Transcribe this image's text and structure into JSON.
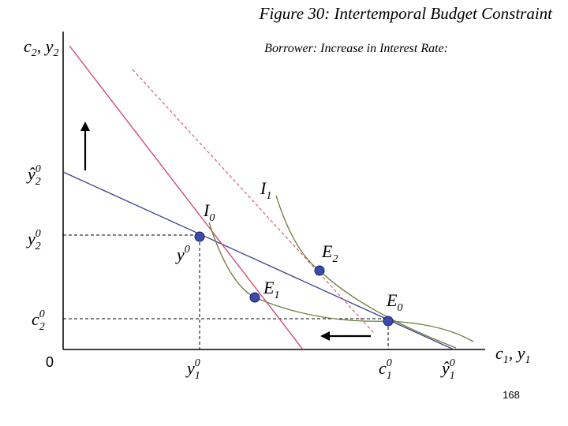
{
  "header": {
    "title": "Figure 30: Intertemporal Budget Constraint",
    "subtitle": "Borrower: Increase in Interest Rate:"
  },
  "axes": {
    "y_label": [
      {
        "base": "c",
        "sub": "2"
      },
      {
        "base": ", y",
        "sub": "2"
      }
    ],
    "x_label": [
      {
        "base": "c",
        "sub": "1"
      },
      {
        "base": ", y",
        "sub": "1"
      }
    ],
    "origin": "0"
  },
  "labels": {
    "y2_hat": {
      "base": "ŷ",
      "sub": "2",
      "sup": "0"
    },
    "y2": {
      "base": "y",
      "sub": "2",
      "sup": "0"
    },
    "c2": {
      "base": "c",
      "sub": "2",
      "sup": "0"
    },
    "y1": {
      "base": "y",
      "sub": "1",
      "sup": "0"
    },
    "c1": {
      "base": "c",
      "sub": "1",
      "sup": "0"
    },
    "y1_hat": {
      "base": "ŷ",
      "sub": "1",
      "sup": "0"
    },
    "y0": {
      "base": "y",
      "sup": "0"
    },
    "E2": {
      "base": "E",
      "sub": "2"
    },
    "E1": {
      "base": "E",
      "sub": "1"
    },
    "E0": {
      "base": "E",
      "sub": "0"
    },
    "I1": {
      "base": "I",
      "sub": "1"
    },
    "I0": {
      "base": "I",
      "sub": "0"
    }
  },
  "page_number": "168"
}
